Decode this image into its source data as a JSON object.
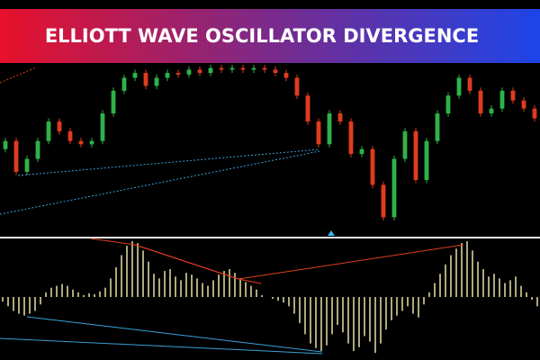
{
  "chart_data": {
    "type": "candlestick",
    "title": "ELLIOTT WAVE OSCILLATOR DIVERGENCE",
    "up_color": "#2fb24a",
    "down_color": "#e03b1f",
    "open": [
      50,
      55,
      36,
      44,
      55,
      67,
      61,
      55,
      53,
      55,
      72,
      86,
      94,
      97,
      89,
      94,
      97,
      96,
      99,
      97,
      100,
      99,
      100,
      99,
      100,
      99,
      97,
      94,
      83,
      67,
      53,
      72,
      67,
      47,
      50,
      28,
      8,
      44,
      61,
      31,
      55,
      72,
      83,
      94,
      86,
      72,
      75,
      86,
      80,
      75
    ],
    "high": [
      57,
      57,
      46,
      57,
      69,
      69,
      63,
      57,
      57,
      74,
      88,
      96,
      99,
      99,
      96,
      99,
      99,
      101,
      101,
      102,
      102,
      102,
      102,
      102,
      102,
      101,
      99,
      96,
      85,
      69,
      74,
      74,
      69,
      52,
      52,
      30,
      46,
      63,
      63,
      57,
      74,
      85,
      96,
      96,
      88,
      77,
      88,
      88,
      82,
      77
    ],
    "low": [
      48,
      34,
      34,
      42,
      53,
      59,
      53,
      51,
      51,
      53,
      70,
      84,
      92,
      87,
      87,
      92,
      94,
      94,
      95,
      95,
      97,
      97,
      97,
      97,
      97,
      95,
      92,
      81,
      65,
      51,
      51,
      65,
      45,
      45,
      26,
      6,
      6,
      42,
      29,
      29,
      53,
      70,
      81,
      84,
      70,
      70,
      73,
      78,
      73,
      67
    ],
    "close": [
      55,
      36,
      44,
      55,
      67,
      61,
      55,
      53,
      55,
      72,
      86,
      94,
      97,
      89,
      94,
      97,
      96,
      99,
      97,
      100,
      99,
      100,
      99,
      100,
      99,
      97,
      94,
      83,
      67,
      53,
      72,
      67,
      47,
      50,
      28,
      8,
      44,
      61,
      31,
      55,
      72,
      83,
      94,
      86,
      72,
      75,
      86,
      80,
      75,
      69
    ],
    "oscillator": {
      "color": "#d8d49a",
      "values": [
        -5,
        -10,
        -15,
        -18,
        -20,
        -18,
        -15,
        -8,
        5,
        10,
        12,
        14,
        12,
        8,
        5,
        2,
        4,
        3,
        6,
        10,
        20,
        32,
        45,
        55,
        60,
        58,
        50,
        38,
        25,
        20,
        28,
        30,
        22,
        18,
        26,
        24,
        20,
        15,
        12,
        18,
        24,
        28,
        30,
        26,
        20,
        16,
        12,
        8,
        2,
        0,
        -2,
        -4,
        -6,
        -10,
        -18,
        -28,
        -40,
        -50,
        -55,
        -58,
        -52,
        -40,
        -30,
        -38,
        -50,
        -58,
        -54,
        -42,
        -48,
        -60,
        -50,
        -35,
        -25,
        -20,
        -15,
        -10,
        -18,
        -22,
        -8,
        5,
        15,
        25,
        35,
        45,
        52,
        58,
        60,
        50,
        38,
        30,
        22,
        25,
        20,
        15,
        18,
        22,
        12,
        5,
        -3,
        -10
      ]
    }
  }
}
